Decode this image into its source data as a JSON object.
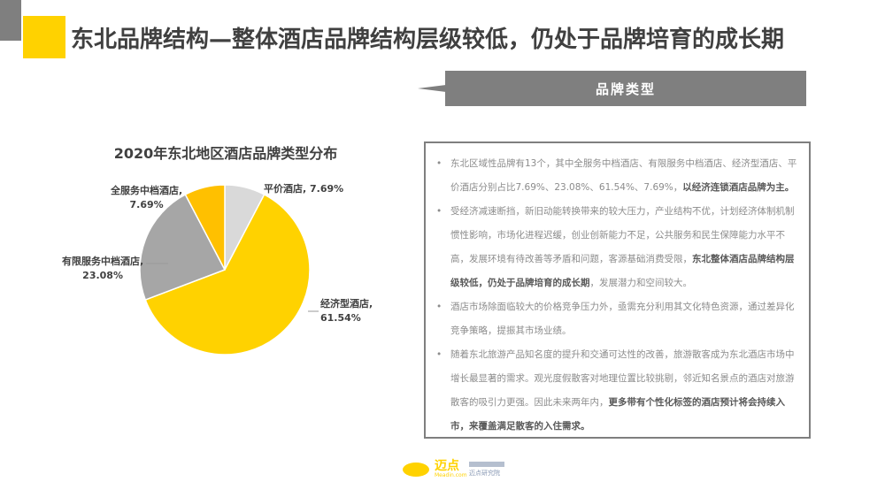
{
  "header": {
    "title": "东北品牌结构—整体酒店品牌结构层级较低，仍处于品牌培育的成长期",
    "tag": "品牌类型"
  },
  "chart_data": {
    "type": "pie",
    "title": "2020年东北地区酒店品牌类型分布",
    "categories": [
      "平价酒店",
      "经济型酒店",
      "有限服务中档酒店",
      "全服务中档酒店"
    ],
    "values": [
      7.69,
      61.54,
      23.08,
      7.69
    ],
    "colors": [
      "#d9d9d9",
      "#ffd200",
      "#a6a6a6",
      "#ffc000"
    ],
    "labels": [
      {
        "name": "平价酒店,",
        "value": "7.69%"
      },
      {
        "name": "经济型酒店,",
        "value": "61.54%"
      },
      {
        "name": "有限服务中档酒店,",
        "value": "23.08%"
      },
      {
        "name": "全服务中档酒店,",
        "value": "7.69%"
      }
    ]
  },
  "bullets": [
    {
      "normal": "东北区域性品牌有13个，其中全服务中档酒店、有限服务中档酒店、经济型酒店、平价酒店分别占比7.69%、23.08%、61.54%、7.69%，",
      "bold": "以经济连锁酒店品牌为主。",
      "tail": ""
    },
    {
      "normal": "受经济减速断挡，新旧动能转换带来的较大压力，产业结构不优，计划经济体制机制惯性影响，市场化进程迟缓，创业创新能力不足，公共服务和民生保障能力水平不高，发展环境有待改善等矛盾和问题，客源基础消费受限，",
      "bold": "东北整体酒店品牌结构层级较低，仍处于品牌培育的成长期",
      "tail": "，发展潜力和空间较大。"
    },
    {
      "normal": "酒店市场除面临较大的价格竞争压力外，亟需充分利用其文化特色资源，通过差异化竞争策略，提振其市场业绩。",
      "bold": "",
      "tail": ""
    },
    {
      "normal": "随着东北旅游产品知名度的提升和交通可达性的改善，旅游散客成为东北酒店市场中增长最显著的需求。观光度假散客对地理位置比较挑剔，邻近知名景点的酒店对旅游散客的吸引力更强。因此未来两年内，",
      "bold": "更多带有个性化标签的酒店预计将会持续入市，来覆盖满足散客的入住需求。",
      "tail": ""
    }
  ],
  "footer": {
    "logo": "迈点",
    "logo_sub": "Meadin.com",
    "logo2": "迈点研究院"
  }
}
